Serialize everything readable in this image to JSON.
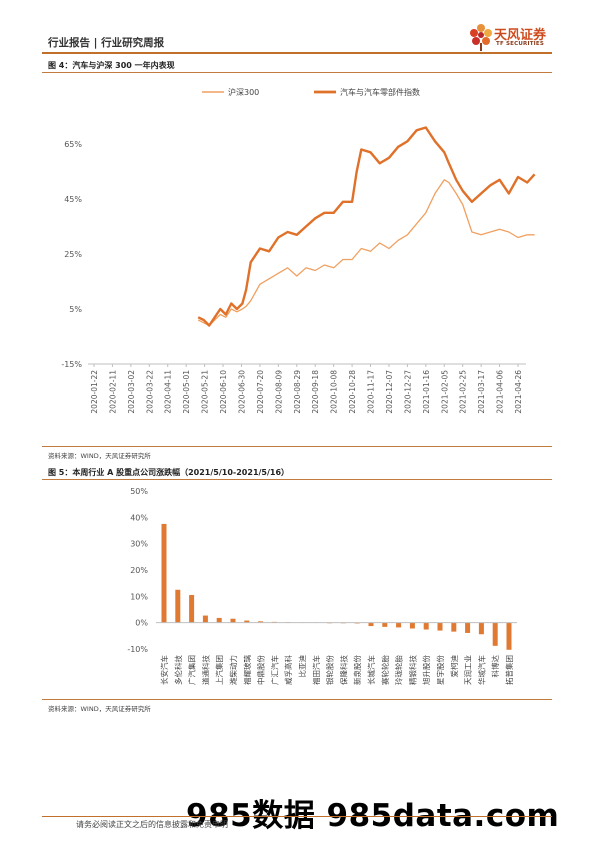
{
  "header": {
    "category": "行业报告 | 行业研究周报",
    "logo_cn": "天风证券",
    "logo_en": "TF SECURITIES",
    "accent_color": "#c0702a"
  },
  "figure4": {
    "title": "图 4：汽车与沪深 300 一年内表现",
    "source": "资料来源：WIND，天风证券研究所"
  },
  "figure5": {
    "title": "图 5：本周行业 A 股重点公司涨跌幅（2021/5/10-2021/5/16）",
    "source": "资料来源：WIND，天风证券研究所"
  },
  "footer": {
    "disclaimer": "请务必阅读正文之后的信息披露和免责申明",
    "watermark": "985数据 985data.com"
  },
  "chart_data": [
    {
      "type": "line",
      "legend_placement": "top",
      "grid": false,
      "ylim": [
        -15,
        65
      ],
      "y_ticks": [
        "-15%",
        "5%",
        "25%",
        "45%",
        "65%"
      ],
      "x_ticks": [
        "2020-01-22",
        "2020-02-11",
        "2020-03-02",
        "2020-03-22",
        "2020-04-11",
        "2020-05-01",
        "2020-05-21",
        "2020-06-10",
        "2020-06-30",
        "2020-07-20",
        "2020-08-09",
        "2020-08-29",
        "2020-09-18",
        "2020-10-08",
        "2020-10-28",
        "2020-11-17",
        "2020-12-07",
        "2020-12-27",
        "2021-01-16",
        "2021-02-05",
        "2021-02-25",
        "2021-03-17",
        "2021-04-06",
        "2021-04-26"
      ],
      "x": [
        "2020-05-14",
        "2020-05-20",
        "2020-05-26",
        "2020-06-01",
        "2020-06-07",
        "2020-06-13",
        "2020-06-19",
        "2020-06-25",
        "2020-07-01",
        "2020-07-05",
        "2020-07-10",
        "2020-07-20",
        "2020-07-30",
        "2020-08-09",
        "2020-08-19",
        "2020-08-29",
        "2020-09-08",
        "2020-09-18",
        "2020-09-28",
        "2020-10-08",
        "2020-10-18",
        "2020-10-28",
        "2020-11-02",
        "2020-11-07",
        "2020-11-17",
        "2020-11-27",
        "2020-12-07",
        "2020-12-17",
        "2020-12-27",
        "2021-01-06",
        "2021-01-16",
        "2021-01-26",
        "2021-02-05",
        "2021-02-10",
        "2021-02-18",
        "2021-02-25",
        "2021-03-07",
        "2021-03-17",
        "2021-03-27",
        "2021-04-06",
        "2021-04-16",
        "2021-04-26",
        "2021-05-06",
        "2021-05-14"
      ],
      "series": [
        {
          "name": "沪深300",
          "color": "#f0a060",
          "values": [
            1,
            0,
            -1,
            1,
            3,
            2,
            5,
            4,
            5,
            6,
            8,
            14,
            16,
            18,
            20,
            17,
            20,
            19,
            21,
            20,
            23,
            23,
            25,
            27,
            26,
            29,
            27,
            30,
            32,
            36,
            40,
            47,
            52,
            51,
            47,
            43,
            33,
            32,
            33,
            34,
            33,
            31,
            32,
            32
          ]
        },
        {
          "name": "汽车与汽车零部件指数",
          "color": "#e0712a",
          "values": [
            2,
            1,
            -1,
            2,
            5,
            3,
            7,
            5,
            7,
            12,
            22,
            27,
            26,
            31,
            33,
            32,
            35,
            38,
            40,
            40,
            44,
            44,
            55,
            63,
            62,
            58,
            60,
            64,
            66,
            70,
            71,
            66,
            62,
            58,
            52,
            48,
            44,
            47,
            50,
            52,
            47,
            53,
            51,
            54
          ]
        }
      ]
    },
    {
      "type": "bar",
      "color": "#e07a32",
      "ylim": [
        -10,
        50
      ],
      "y_ticks": [
        "-10%",
        "0%",
        "10%",
        "20%",
        "30%",
        "40%",
        "50%"
      ],
      "categories": [
        "长安汽车",
        "多伦科技",
        "广汽集团",
        "道通科技",
        "上汽集团",
        "潍柴动力",
        "福耀玻璃",
        "中鼎股份",
        "广汇汽车",
        "威孚高科",
        "比亚迪",
        "福田汽车",
        "银轮股份",
        "保隆科技",
        "新泉股份",
        "长城汽车",
        "赛轮轮胎",
        "玲珑轮胎",
        "精锻科技",
        "旭升股份",
        "星宇股份",
        "爱柯迪",
        "天润工业",
        "华域汽车",
        "科博达",
        "拓普集团"
      ],
      "values": [
        37.5,
        12.5,
        10.5,
        2.7,
        1.8,
        1.5,
        0.8,
        0.5,
        0.3,
        0.2,
        0.1,
        0.1,
        -0.2,
        -0.2,
        -0.3,
        -1.3,
        -1.6,
        -1.8,
        -2.2,
        -2.6,
        -3.0,
        -3.4,
        -3.9,
        -4.4,
        -8.8,
        -10.3
      ]
    }
  ]
}
